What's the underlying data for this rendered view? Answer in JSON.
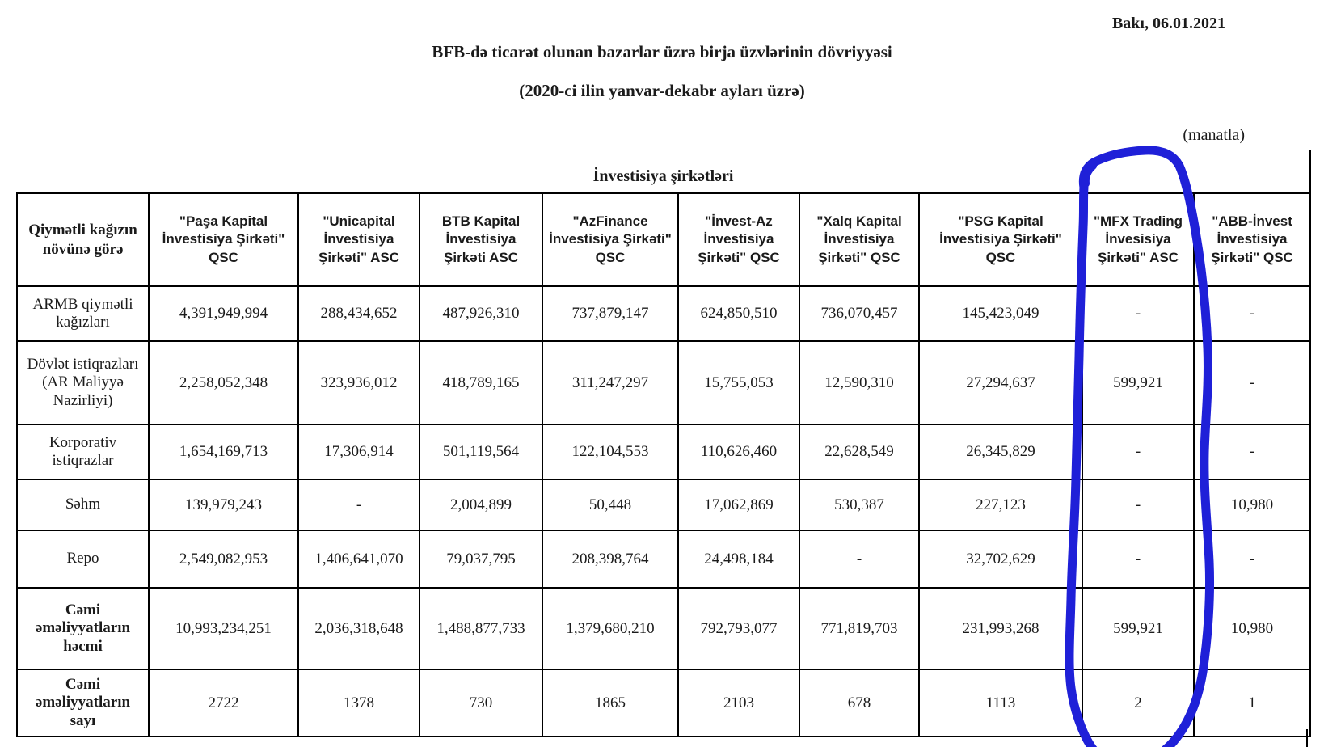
{
  "page": {
    "date": "Bakı, 06.01.2021",
    "title": "BFB-də ticarət olunan bazarlar üzrə birja üzvlərinin dövriyyəsi",
    "subtitle": "(2020-ci ilin yanvar-dekabr ayları üzrə)",
    "unit_note": "(manatla)",
    "group_header": "İnvestisiya şirkətləri"
  },
  "table": {
    "corner_header": "Qiymətli kağızın növünə görə",
    "columns": [
      "\"Paşa Kapital İnvestisiya Şirkəti\" QSC",
      "\"Unicapital İnvestisiya Şirkəti\" ASC",
      "BTB Kapital İnvestisiya Şirkəti ASC",
      "\"AzFinance İnvestisiya Şirkəti\" QSC",
      "\"İnvest-Az İnvestisiya Şirkəti\" QSC",
      "\"Xalq Kapital İnvestisiya Şirkəti\" QSC",
      "\"PSG Kapital İnvestisiya Şirkəti\" QSC",
      "\"MFX Trading İnvesisiya Şirkəti\" ASC",
      "\"ABB-İnvest İnvestisiya Şirkəti\" QSC"
    ],
    "rows": [
      {
        "label": "ARMB qiymətli kağızları",
        "bold": false,
        "values": [
          "4,391,949,994",
          "288,434,652",
          "487,926,310",
          "737,879,147",
          "624,850,510",
          "736,070,457",
          "145,423,049",
          "-",
          "-"
        ]
      },
      {
        "label": "Dövlət istiqrazları (AR Maliyyə Nazirliyi)",
        "bold": false,
        "values": [
          "2,258,052,348",
          "323,936,012",
          "418,789,165",
          "311,247,297",
          "15,755,053",
          "12,590,310",
          "27,294,637",
          "599,921",
          "-"
        ]
      },
      {
        "label": "Korporativ istiqrazlar",
        "bold": false,
        "values": [
          "1,654,169,713",
          "17,306,914",
          "501,119,564",
          "122,104,553",
          "110,626,460",
          "22,628,549",
          "26,345,829",
          "-",
          "-"
        ]
      },
      {
        "label": "Səhm",
        "bold": false,
        "values": [
          "139,979,243",
          "-",
          "2,004,899",
          "50,448",
          "17,062,869",
          "530,387",
          "227,123",
          "-",
          "10,980"
        ]
      },
      {
        "label": "Repo",
        "bold": false,
        "values": [
          "2,549,082,953",
          "1,406,641,070",
          "79,037,795",
          "208,398,764",
          "24,498,184",
          "-",
          "32,702,629",
          "-",
          "-"
        ]
      },
      {
        "label": "Cəmi əməliyyatların həcmi",
        "bold": true,
        "values": [
          "10,993,234,251",
          "2,036,318,648",
          "1,488,877,733",
          "1,379,680,210",
          "792,793,077",
          "771,819,703",
          "231,993,268",
          "599,921",
          "10,980"
        ]
      },
      {
        "label": "Cəmi əməliyyatların sayı",
        "bold": true,
        "values": [
          "2722",
          "1378",
          "730",
          "1865",
          "2103",
          "678",
          "1113",
          "2",
          "1"
        ]
      }
    ]
  },
  "annotation": {
    "description": "hand-drawn blue circle highlighting the MFX Trading column",
    "highlighted_column": "\"MFX Trading İnvesisiya Şirkəti\" ASC",
    "color": "#1f20d8"
  }
}
